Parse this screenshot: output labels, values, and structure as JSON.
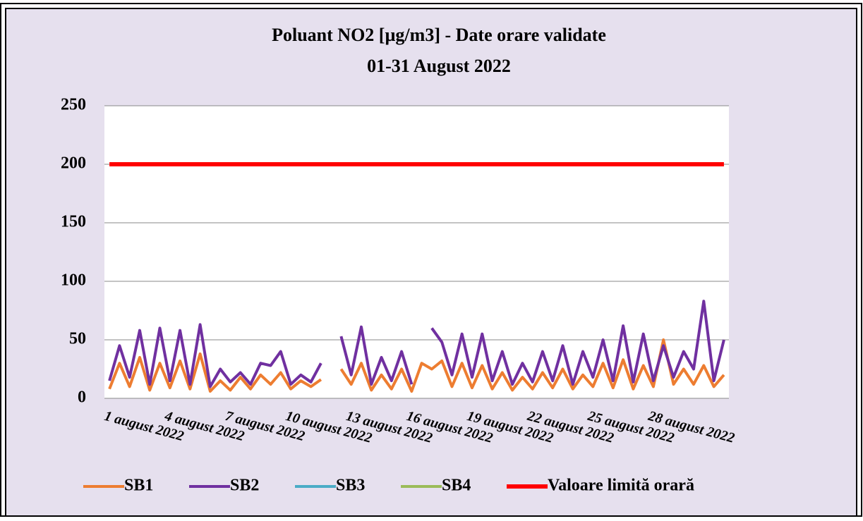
{
  "chart_data": {
    "type": "line",
    "title": "Poluant NO2 [µg/m3] - Date orare validate",
    "subtitle": "01-31 August 2022",
    "categories": [
      "1 august 2022",
      null,
      null,
      null,
      null,
      null,
      "4 august 2022",
      null,
      null,
      null,
      null,
      null,
      "7 august 2022",
      null,
      null,
      null,
      null,
      null,
      "10 august 2022",
      null,
      null,
      null,
      null,
      null,
      "13 august 2022",
      null,
      null,
      null,
      null,
      null,
      "16 august 2022",
      null,
      null,
      null,
      null,
      null,
      "19 august 2022",
      null,
      null,
      null,
      null,
      null,
      "22 august 2022",
      null,
      null,
      null,
      null,
      null,
      "25 august 2022",
      null,
      null,
      null,
      null,
      null,
      "28 august 2022",
      null,
      null,
      null,
      null,
      null,
      null,
      null
    ],
    "series": [
      {
        "name": "SB1",
        "color": "#ed7d31",
        "values": [
          8,
          30,
          10,
          35,
          7,
          30,
          9,
          32,
          8,
          38,
          6,
          15,
          7,
          18,
          8,
          20,
          12,
          22,
          8,
          15,
          10,
          16,
          null,
          25,
          12,
          30,
          7,
          20,
          8,
          25,
          6,
          30,
          25,
          32,
          10,
          30,
          9,
          28,
          8,
          22,
          7,
          18,
          8,
          22,
          9,
          25,
          8,
          20,
          10,
          30,
          9,
          33,
          8,
          28,
          10,
          50,
          12,
          25,
          12,
          28,
          10,
          20
        ]
      },
      {
        "name": "SB2",
        "color": "#7030a0",
        "values": [
          15,
          45,
          18,
          58,
          12,
          60,
          15,
          58,
          12,
          63,
          10,
          25,
          14,
          22,
          12,
          30,
          28,
          40,
          12,
          20,
          14,
          30,
          null,
          53,
          20,
          61,
          12,
          35,
          15,
          40,
          12,
          null,
          60,
          48,
          20,
          55,
          18,
          55,
          15,
          40,
          12,
          30,
          14,
          40,
          15,
          45,
          12,
          40,
          18,
          50,
          15,
          62,
          14,
          55,
          15,
          45,
          18,
          40,
          25,
          83,
          15,
          50
        ]
      },
      {
        "name": "SB3",
        "color": "#4bacc6",
        "values": [
          null,
          null,
          null,
          null,
          null,
          null,
          null,
          null,
          null,
          null,
          null,
          null,
          null,
          null,
          null,
          null,
          null,
          null,
          null,
          null,
          null,
          null,
          null,
          null,
          null,
          null,
          null,
          null,
          null,
          null,
          null,
          null,
          null,
          null,
          null,
          null,
          null,
          null,
          null,
          null,
          null,
          null,
          null,
          null,
          null,
          null,
          null,
          null,
          null,
          null,
          null,
          null,
          null,
          null,
          null,
          null,
          null,
          null,
          null,
          null,
          null,
          null
        ]
      },
      {
        "name": "SB4",
        "color": "#9bbb59",
        "values": [
          null,
          null,
          null,
          null,
          null,
          null,
          null,
          null,
          null,
          null,
          null,
          null,
          null,
          null,
          null,
          null,
          null,
          null,
          null,
          null,
          null,
          null,
          null,
          null,
          null,
          null,
          null,
          null,
          null,
          null,
          null,
          null,
          null,
          null,
          null,
          null,
          null,
          null,
          null,
          null,
          null,
          null,
          null,
          null,
          null,
          null,
          null,
          null,
          null,
          null,
          null,
          null,
          null,
          null,
          null,
          null,
          null,
          null,
          null,
          null,
          null,
          null
        ]
      },
      {
        "name": "Valoare limită orară",
        "color": "#ff0000",
        "values": [
          200,
          200,
          200,
          200,
          200,
          200,
          200,
          200,
          200,
          200,
          200,
          200,
          200,
          200,
          200,
          200,
          200,
          200,
          200,
          200,
          200,
          200,
          200,
          200,
          200,
          200,
          200,
          200,
          200,
          200,
          200,
          200,
          200,
          200,
          200,
          200,
          200,
          200,
          200,
          200,
          200,
          200,
          200,
          200,
          200,
          200,
          200,
          200,
          200,
          200,
          200,
          200,
          200,
          200,
          200,
          200,
          200,
          200,
          200,
          200,
          200,
          200
        ]
      }
    ],
    "ylim": [
      0,
      250
    ],
    "yticks": [
      0,
      50,
      100,
      150,
      200,
      250
    ],
    "grid": true,
    "legend": "bottom"
  }
}
